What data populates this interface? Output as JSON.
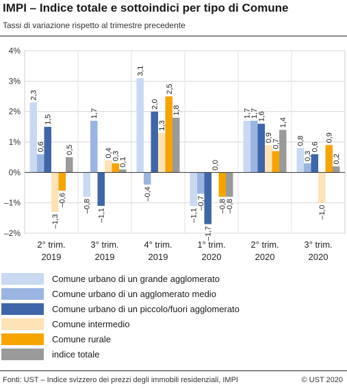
{
  "header": {
    "title": "IMPI – Indice totale e sottoindici per tipo di Comune",
    "subtitle": "Tassi di variazione rispetto al trimestre precedente"
  },
  "chart_data": {
    "type": "bar",
    "categories": [
      [
        "2° trim.",
        "2019"
      ],
      [
        "3° trim.",
        "2019"
      ],
      [
        "4° trim.",
        "2019"
      ],
      [
        "1° trim.",
        "2020"
      ],
      [
        "2° trim.",
        "2020"
      ],
      [
        "3° trim.",
        "2020"
      ]
    ],
    "ylim": [
      -2,
      4
    ],
    "yticks": [
      "–2%",
      "–1%",
      "0%",
      "1%",
      "2%",
      "3%",
      "4%"
    ],
    "grid": true,
    "legend_position": "bottom",
    "series": [
      {
        "name": "Comune urbano di un grande agglomerato",
        "color": "#c9d9f2",
        "values": [
          2.3,
          -0.8,
          3.1,
          -1.1,
          1.7,
          0.8
        ],
        "labels": [
          "2,3",
          "–0,8",
          "3,1",
          "–1,1",
          "1,7",
          "0,8"
        ]
      },
      {
        "name": "Comune urbano di un agglomerato medio",
        "color": "#9bb5e2",
        "values": [
          0.6,
          1.7,
          -0.4,
          -0.7,
          1.7,
          0.3
        ],
        "labels": [
          "0,6",
          "1,7",
          "–0,4",
          "–0,7",
          "1,7",
          "0,3"
        ]
      },
      {
        "name": "Comune urbano di un piccolo/fuori agglomerato",
        "color": "#3f66a8",
        "values": [
          1.5,
          -1.1,
          2.0,
          -1.7,
          1.6,
          0.6
        ],
        "labels": [
          "1,5",
          "–1,1",
          "2,0",
          "–1,7",
          "1,6",
          "0,6"
        ]
      },
      {
        "name": "Comune intermedio",
        "color": "#fde3b5",
        "values": [
          -1.3,
          0.4,
          1.3,
          0.0,
          0.9,
          -1.0
        ],
        "labels": [
          "–1,3",
          "0,4",
          "1,3",
          "0,0",
          "0,9",
          "–1,0"
        ]
      },
      {
        "name": "Comune rurale",
        "color": "#f5a400",
        "values": [
          -0.6,
          0.3,
          2.5,
          -0.8,
          0.7,
          0.9
        ],
        "labels": [
          "–0,6",
          "0,3",
          "2,5",
          "–0,8",
          "0,7",
          "0,9"
        ]
      },
      {
        "name": "indice totale",
        "color": "#9a9a9a",
        "values": [
          0.5,
          0.1,
          1.8,
          -0.8,
          1.4,
          0.2
        ],
        "labels": [
          "0,5",
          "0,1",
          "1,8",
          "–0,8",
          "1,4",
          "0,2"
        ]
      }
    ]
  },
  "footer": {
    "source": "Fonti: UST – Indice svizzero dei prezzi degli immobili residenziali, IMPI",
    "copyright": "© UST 2020"
  }
}
